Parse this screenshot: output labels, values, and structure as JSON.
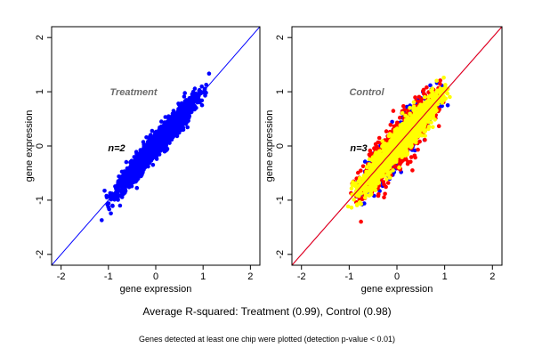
{
  "chart_data": [
    {
      "type": "scatter",
      "panel_label": "Treatment",
      "n_label": "n=2",
      "xlabel": "gene expression",
      "ylabel": "gene expression",
      "xlim": [
        -2.2,
        2.2
      ],
      "ylim": [
        -2.2,
        2.2
      ],
      "xticks": [
        -2,
        -1,
        0,
        1,
        2
      ],
      "yticks": [
        -2,
        -1,
        0,
        1,
        2
      ],
      "grid": false,
      "reference_lines": [
        {
          "slope": 1,
          "intercept": 0,
          "color": "#0000ff"
        }
      ],
      "series": [
        {
          "color": "#0000ff",
          "x_range": [
            -1.15,
            1.2
          ],
          "spread": 0.1,
          "count": 2400
        }
      ]
    },
    {
      "type": "scatter",
      "panel_label": "Control",
      "n_label": "n=3",
      "xlabel": "gene expression",
      "ylabel": "gene expression",
      "xlim": [
        -2.2,
        2.2
      ],
      "ylim": [
        -2.2,
        2.2
      ],
      "xticks": [
        -2,
        -1,
        0,
        1,
        2
      ],
      "yticks": [
        -2,
        -1,
        0,
        1,
        2
      ],
      "grid": false,
      "reference_lines": [
        {
          "slope": 1,
          "intercept": 0,
          "color": "#0000ff"
        },
        {
          "slope": 1,
          "intercept": 0,
          "color": "#ff0000"
        }
      ],
      "series": [
        {
          "color": "#0000ff",
          "x_range": [
            -1.05,
            1.15
          ],
          "spread": 0.16,
          "count": 900
        },
        {
          "color": "#ff0000",
          "x_range": [
            -1.05,
            1.15
          ],
          "spread": 0.19,
          "count": 1100
        },
        {
          "color": "#ffff00",
          "x_range": [
            -1.1,
            1.2
          ],
          "spread": 0.12,
          "count": 2600
        }
      ]
    }
  ],
  "captions": {
    "main": "Average R-squared: Treatment (0.99), Control (0.98)",
    "sub": "Genes detected at least one chip were plotted (detection p-value < 0.01)"
  }
}
